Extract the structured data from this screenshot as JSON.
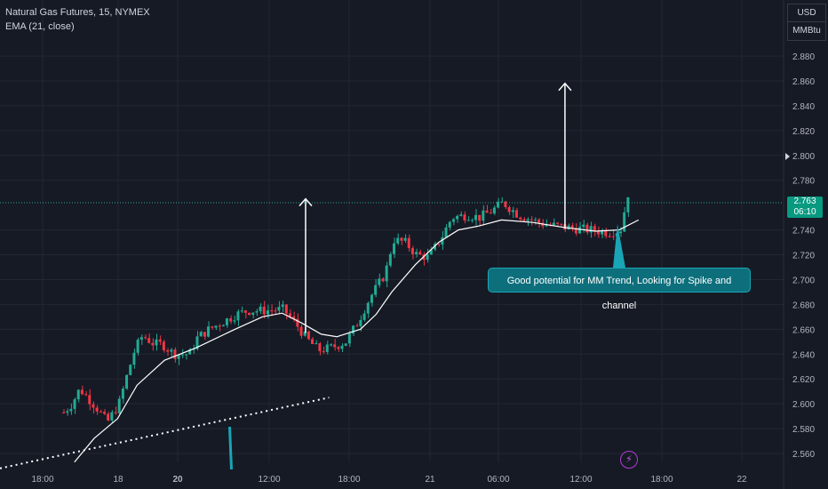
{
  "legend": {
    "symbol": "Natural Gas Futures, 15, NYMEX",
    "indicator": "EMA (21, close)"
  },
  "scale": {
    "currency": "USD",
    "unit": "MMBtu"
  },
  "last_price": {
    "value": "2.763",
    "countdown": "06:10"
  },
  "annotation": {
    "text": "Good potential for MM Trend, Looking for Spike and channel"
  },
  "colors": {
    "background": "#161a25",
    "grid": "#232733",
    "up": "#22ab94",
    "down": "#f23645",
    "ema": "#ffffff",
    "callout": "#0e6f7c"
  },
  "icons": {
    "alert": "lightning-icon"
  },
  "chart_data": {
    "type": "candlestick",
    "symbol": "Natural Gas Futures, 15, NYMEX",
    "indicator": "EMA (21, close)",
    "y_ticks": [
      2.88,
      2.86,
      2.84,
      2.82,
      2.8,
      2.78,
      2.74,
      2.72,
      2.7,
      2.68,
      2.66,
      2.64,
      2.62,
      2.6,
      2.58,
      2.56
    ],
    "x_ticks": [
      "18:00",
      "18",
      "20",
      "12:00",
      "18:00",
      "21",
      "06:00",
      "12:00",
      "18:00",
      "22"
    ],
    "ylim": [
      2.553,
      2.9
    ],
    "grid": true,
    "close_path": [
      [
        0,
        2.557
      ],
      [
        0.035,
        2.566
      ],
      [
        0.06,
        2.58
      ],
      [
        0.075,
        2.59
      ],
      [
        0.09,
        2.6
      ],
      [
        0.1,
        2.612
      ],
      [
        0.12,
        2.598
      ],
      [
        0.135,
        2.585
      ],
      [
        0.15,
        2.6
      ],
      [
        0.16,
        2.622
      ],
      [
        0.17,
        2.643
      ],
      [
        0.18,
        2.655
      ],
      [
        0.195,
        2.648
      ],
      [
        0.205,
        2.648
      ],
      [
        0.22,
        2.64
      ],
      [
        0.24,
        2.64
      ],
      [
        0.25,
        2.653
      ],
      [
        0.265,
        2.66
      ],
      [
        0.28,
        2.665
      ],
      [
        0.3,
        2.672
      ],
      [
        0.315,
        2.675
      ],
      [
        0.335,
        2.675
      ],
      [
        0.36,
        2.676
      ],
      [
        0.375,
        2.665
      ],
      [
        0.39,
        2.652
      ],
      [
        0.405,
        2.643
      ],
      [
        0.42,
        2.645
      ],
      [
        0.44,
        2.65
      ],
      [
        0.455,
        2.666
      ],
      [
        0.47,
        2.685
      ],
      [
        0.49,
        2.705
      ],
      [
        0.5,
        2.732
      ],
      [
        0.515,
        2.73
      ],
      [
        0.53,
        2.72
      ],
      [
        0.545,
        2.718
      ],
      [
        0.56,
        2.732
      ],
      [
        0.575,
        2.75
      ],
      [
        0.595,
        2.752
      ],
      [
        0.61,
        2.75
      ],
      [
        0.625,
        2.755
      ],
      [
        0.64,
        2.762
      ],
      [
        0.66,
        2.752
      ],
      [
        0.69,
        2.745
      ],
      [
        0.72,
        2.742
      ],
      [
        0.75,
        2.74
      ],
      [
        0.775,
        2.738
      ],
      [
        0.79,
        2.74
      ],
      [
        0.8,
        2.77
      ],
      [
        0.815,
        2.762
      ]
    ],
    "ema_path": [
      [
        0.095,
        2.553
      ],
      [
        0.12,
        2.572
      ],
      [
        0.15,
        2.588
      ],
      [
        0.175,
        2.615
      ],
      [
        0.21,
        2.635
      ],
      [
        0.25,
        2.645
      ],
      [
        0.3,
        2.66
      ],
      [
        0.335,
        2.67
      ],
      [
        0.36,
        2.673
      ],
      [
        0.385,
        2.665
      ],
      [
        0.41,
        2.656
      ],
      [
        0.43,
        2.654
      ],
      [
        0.46,
        2.66
      ],
      [
        0.48,
        2.672
      ],
      [
        0.5,
        2.69
      ],
      [
        0.53,
        2.712
      ],
      [
        0.56,
        2.73
      ],
      [
        0.585,
        2.74
      ],
      [
        0.61,
        2.743
      ],
      [
        0.64,
        2.748
      ],
      [
        0.68,
        2.746
      ],
      [
        0.72,
        2.742
      ],
      [
        0.76,
        2.739
      ],
      [
        0.79,
        2.74
      ],
      [
        0.815,
        2.748
      ]
    ],
    "trendline": {
      "from": [
        0,
        2.548
      ],
      "to": [
        0.42,
        2.605
      ]
    },
    "arrows": [
      {
        "x": 0.39,
        "from": 2.657,
        "to": 2.765
      },
      {
        "x": 0.721,
        "from": 2.741,
        "to": 2.858
      }
    ]
  }
}
